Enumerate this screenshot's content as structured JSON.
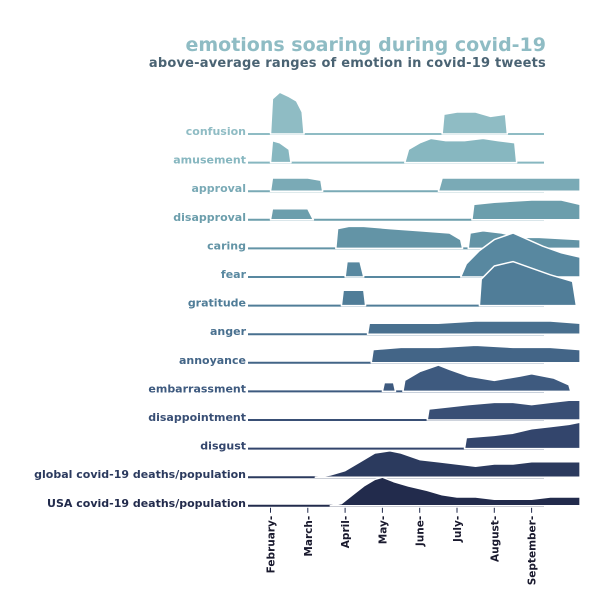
{
  "chart_data": {
    "type": "area",
    "title": "emotions soaring during covid-19",
    "subtitle": "above-average ranges of emotion in covid-19 tweets",
    "x_ticks": [
      "February",
      "March",
      "April",
      "May",
      "June",
      "July",
      "August",
      "September"
    ],
    "series": [
      {
        "name": "confusion",
        "color": "#8fbcc4",
        "segments": [
          [
            [
              1.0,
              0.0
            ],
            [
              1.05,
              0.8
            ],
            [
              1.25,
              0.95
            ],
            [
              1.5,
              0.85
            ],
            [
              1.7,
              0.75
            ],
            [
              1.85,
              0.5
            ],
            [
              1.9,
              0.0
            ]
          ],
          [
            [
              5.6,
              0.0
            ],
            [
              5.65,
              0.45
            ],
            [
              6.0,
              0.5
            ],
            [
              6.5,
              0.5
            ],
            [
              6.9,
              0.4
            ],
            [
              7.3,
              0.45
            ],
            [
              7.35,
              0.0
            ]
          ]
        ],
        "fill": [
          [
            3.9,
            0.0
          ],
          [
            4.0,
            0.15
          ],
          [
            4.4,
            0.3
          ],
          [
            4.9,
            0.25
          ],
          [
            5.3,
            0.15
          ],
          [
            5.6,
            0.05
          ],
          [
            5.7,
            0.0
          ]
        ]
      },
      {
        "name": "amusement",
        "color": "#87b7c0",
        "segments": [
          [
            [
              1.0,
              0.0
            ],
            [
              1.05,
              0.5
            ],
            [
              1.25,
              0.45
            ],
            [
              1.5,
              0.3
            ],
            [
              1.55,
              0.0
            ]
          ],
          [
            [
              4.6,
              0.0
            ],
            [
              4.7,
              0.3
            ],
            [
              5.0,
              0.45
            ],
            [
              5.3,
              0.55
            ],
            [
              5.7,
              0.5
            ],
            [
              6.2,
              0.5
            ],
            [
              6.7,
              0.55
            ],
            [
              7.1,
              0.5
            ],
            [
              7.55,
              0.45
            ],
            [
              7.6,
              0.0
            ]
          ]
        ]
      },
      {
        "name": "approval",
        "color": "#7aaab6",
        "segments": [
          [
            [
              1.0,
              0.0
            ],
            [
              1.05,
              0.3
            ],
            [
              1.5,
              0.3
            ],
            [
              2.0,
              0.3
            ],
            [
              2.35,
              0.25
            ],
            [
              2.4,
              0.0
            ]
          ],
          [
            [
              5.5,
              0.0
            ],
            [
              5.6,
              0.3
            ],
            [
              6.0,
              0.3
            ],
            [
              7.0,
              0.3
            ],
            [
              8.0,
              0.3
            ],
            [
              9.3,
              0.3
            ],
            [
              9.3,
              0.0
            ]
          ]
        ]
      },
      {
        "name": "disapproval",
        "color": "#6c9eac",
        "segments": [
          [
            [
              1.0,
              0.0
            ],
            [
              1.05,
              0.25
            ],
            [
              1.5,
              0.25
            ],
            [
              2.0,
              0.25
            ],
            [
              2.15,
              0.0
            ]
          ],
          [
            [
              6.4,
              0.0
            ],
            [
              6.45,
              0.35
            ],
            [
              7.0,
              0.4
            ],
            [
              8.0,
              0.45
            ],
            [
              8.8,
              0.45
            ],
            [
              9.3,
              0.35
            ],
            [
              9.3,
              0.0
            ]
          ]
        ]
      },
      {
        "name": "caring",
        "color": "#6394a6",
        "segments": [
          [
            [
              2.75,
              0.0
            ],
            [
              2.8,
              0.45
            ],
            [
              3.1,
              0.5
            ],
            [
              3.5,
              0.5
            ],
            [
              4.2,
              0.45
            ],
            [
              5.0,
              0.4
            ],
            [
              5.8,
              0.35
            ],
            [
              6.1,
              0.2
            ],
            [
              6.15,
              0.0
            ]
          ],
          [
            [
              6.3,
              0.0
            ],
            [
              6.35,
              0.35
            ],
            [
              6.7,
              0.4
            ],
            [
              7.2,
              0.35
            ],
            [
              7.7,
              0.25
            ],
            [
              8.2,
              0.25
            ],
            [
              9.3,
              0.2
            ],
            [
              9.3,
              0.0
            ]
          ]
        ],
        "fill": [
          [
            6.8,
            0.0
          ],
          [
            7.2,
            0.3
          ],
          [
            7.6,
            0.5
          ],
          [
            8.1,
            0.35
          ],
          [
            8.6,
            0.25
          ],
          [
            9.3,
            0.25
          ],
          [
            9.3,
            0.0
          ]
        ]
      },
      {
        "name": "fear",
        "color": "#5888a0",
        "segments": [
          [
            [
              3.0,
              0.0
            ],
            [
              3.05,
              0.35
            ],
            [
              3.4,
              0.35
            ],
            [
              3.5,
              0.0
            ]
          ],
          [
            [
              6.1,
              0.0
            ],
            [
              6.25,
              0.3
            ],
            [
              6.6,
              0.6
            ],
            [
              7.0,
              0.85
            ],
            [
              7.5,
              1.0
            ],
            [
              7.9,
              0.85
            ],
            [
              8.3,
              0.7
            ],
            [
              8.8,
              0.55
            ],
            [
              9.3,
              0.45
            ],
            [
              9.3,
              0.0
            ]
          ]
        ]
      },
      {
        "name": "gratitude",
        "color": "#507d98",
        "segments": [
          [
            [
              2.9,
              0.0
            ],
            [
              2.95,
              0.35
            ],
            [
              3.5,
              0.35
            ],
            [
              3.55,
              0.0
            ]
          ],
          [
            [
              6.6,
              0.0
            ],
            [
              6.65,
              0.6
            ],
            [
              7.0,
              0.9
            ],
            [
              7.5,
              1.0
            ],
            [
              8.0,
              0.85
            ],
            [
              8.5,
              0.7
            ],
            [
              9.1,
              0.55
            ],
            [
              9.2,
              0.0
            ]
          ]
        ]
      },
      {
        "name": "anger",
        "color": "#49708f",
        "segments": [
          [
            [
              3.6,
              0.0
            ],
            [
              3.65,
              0.25
            ],
            [
              4.5,
              0.25
            ],
            [
              5.5,
              0.25
            ],
            [
              6.5,
              0.3
            ],
            [
              7.5,
              0.3
            ],
            [
              8.5,
              0.3
            ],
            [
              9.3,
              0.25
            ],
            [
              9.3,
              0.0
            ]
          ]
        ]
      },
      {
        "name": "annoyance",
        "color": "#436587",
        "segments": [
          [
            [
              3.7,
              0.0
            ],
            [
              3.75,
              0.3
            ],
            [
              4.5,
              0.35
            ],
            [
              5.5,
              0.35
            ],
            [
              6.5,
              0.4
            ],
            [
              7.5,
              0.35
            ],
            [
              8.5,
              0.35
            ],
            [
              9.3,
              0.3
            ],
            [
              9.3,
              0.0
            ]
          ]
        ]
      },
      {
        "name": "embarrassment",
        "color": "#3e5a7f",
        "segments": [
          [
            [
              4.0,
              0.0
            ],
            [
              4.05,
              0.2
            ],
            [
              4.3,
              0.2
            ],
            [
              4.35,
              0.0
            ]
          ],
          [
            [
              4.55,
              0.0
            ],
            [
              4.6,
              0.25
            ],
            [
              5.0,
              0.45
            ],
            [
              5.5,
              0.6
            ],
            [
              5.8,
              0.5
            ],
            [
              6.3,
              0.35
            ],
            [
              7.0,
              0.25
            ],
            [
              7.7,
              0.35
            ],
            [
              8.0,
              0.4
            ],
            [
              8.6,
              0.3
            ],
            [
              9.0,
              0.15
            ],
            [
              9.05,
              0.0
            ]
          ]
        ]
      },
      {
        "name": "disappointment",
        "color": "#394f75",
        "segments": [
          [
            [
              5.2,
              0.0
            ],
            [
              5.25,
              0.25
            ],
            [
              5.8,
              0.3
            ],
            [
              6.3,
              0.35
            ],
            [
              7.0,
              0.4
            ],
            [
              7.5,
              0.4
            ],
            [
              8.0,
              0.35
            ],
            [
              8.5,
              0.4
            ],
            [
              9.0,
              0.45
            ],
            [
              9.3,
              0.45
            ],
            [
              9.3,
              0.0
            ]
          ]
        ]
      },
      {
        "name": "disgust",
        "color": "#33456c",
        "segments": [
          [
            [
              6.2,
              0.0
            ],
            [
              6.25,
              0.25
            ],
            [
              7.0,
              0.3
            ],
            [
              7.5,
              0.35
            ],
            [
              8.0,
              0.45
            ],
            [
              8.5,
              0.5
            ],
            [
              9.0,
              0.55
            ],
            [
              9.3,
              0.6
            ],
            [
              9.3,
              0.0
            ]
          ]
        ]
      },
      {
        "name": "global covid-19 deaths/population",
        "color": "#2b3a5e",
        "segments": [
          [
            [
              2.2,
              0.0
            ],
            [
              2.6,
              0.05
            ],
            [
              3.0,
              0.15
            ],
            [
              3.4,
              0.35
            ],
            [
              3.8,
              0.55
            ],
            [
              4.2,
              0.6
            ],
            [
              4.5,
              0.55
            ],
            [
              5.0,
              0.4
            ],
            [
              5.5,
              0.35
            ],
            [
              6.0,
              0.3
            ],
            [
              6.5,
              0.25
            ],
            [
              7.0,
              0.3
            ],
            [
              7.5,
              0.3
            ],
            [
              8.0,
              0.35
            ],
            [
              8.5,
              0.35
            ],
            [
              9.3,
              0.35
            ],
            [
              9.3,
              0.0
            ]
          ]
        ]
      },
      {
        "name": "USA covid-19 deaths/population",
        "color": "#222b4c",
        "segments": [
          [
            [
              2.6,
              0.0
            ],
            [
              2.9,
              0.05
            ],
            [
              3.2,
              0.25
            ],
            [
              3.5,
              0.45
            ],
            [
              3.8,
              0.6
            ],
            [
              4.0,
              0.65
            ],
            [
              4.3,
              0.55
            ],
            [
              4.7,
              0.45
            ],
            [
              5.2,
              0.35
            ],
            [
              5.6,
              0.25
            ],
            [
              6.0,
              0.2
            ],
            [
              6.5,
              0.2
            ],
            [
              7.0,
              0.15
            ],
            [
              7.5,
              0.15
            ],
            [
              8.0,
              0.15
            ],
            [
              8.5,
              0.2
            ],
            [
              9.3,
              0.2
            ],
            [
              9.3,
              0.0
            ]
          ]
        ]
      }
    ]
  }
}
